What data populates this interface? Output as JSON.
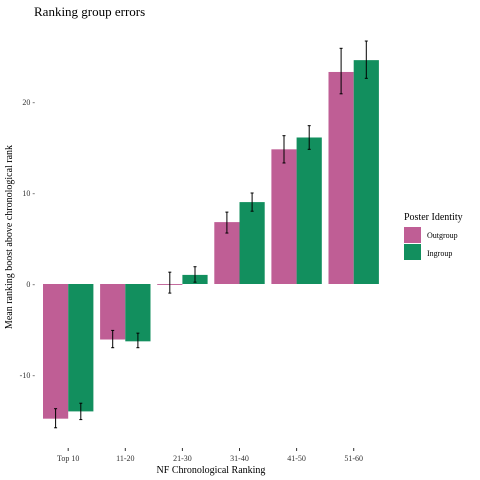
{
  "chart_data": {
    "type": "bar",
    "title": "Ranking group errors",
    "xlabel": "NF Chronological Ranking",
    "ylabel": "Mean ranking boost above chronological rank",
    "categories": [
      "Top 10",
      "11-20",
      "21-30",
      "31-40",
      "41-50",
      "51-60"
    ],
    "yticks": [
      -10,
      0,
      10,
      20
    ],
    "ytick_labels": [
      "-10 -",
      "0 -",
      "10 -",
      "20 -"
    ],
    "ylim": [
      -16.5,
      27
    ],
    "grid": false,
    "legend": {
      "title": "Poster Identity",
      "position": "right"
    },
    "series": [
      {
        "name": "Outgroup",
        "color": "#bf5e95",
        "values": [
          -14.8,
          -6.1,
          -0.1,
          6.8,
          14.8,
          23.3
        ],
        "err_low": [
          -15.8,
          -7.0,
          -1.0,
          5.6,
          13.3,
          20.9
        ],
        "err_high": [
          -13.7,
          -5.1,
          1.3,
          7.9,
          16.3,
          25.9
        ]
      },
      {
        "name": "Ingroup",
        "color": "#128f5e",
        "values": [
          -14.0,
          -6.3,
          1.0,
          9.0,
          16.1,
          24.6
        ],
        "err_low": [
          -14.9,
          -7.0,
          0.2,
          8.0,
          14.8,
          22.6
        ],
        "err_high": [
          -13.1,
          -5.4,
          1.9,
          10.0,
          17.4,
          26.7
        ]
      }
    ]
  }
}
